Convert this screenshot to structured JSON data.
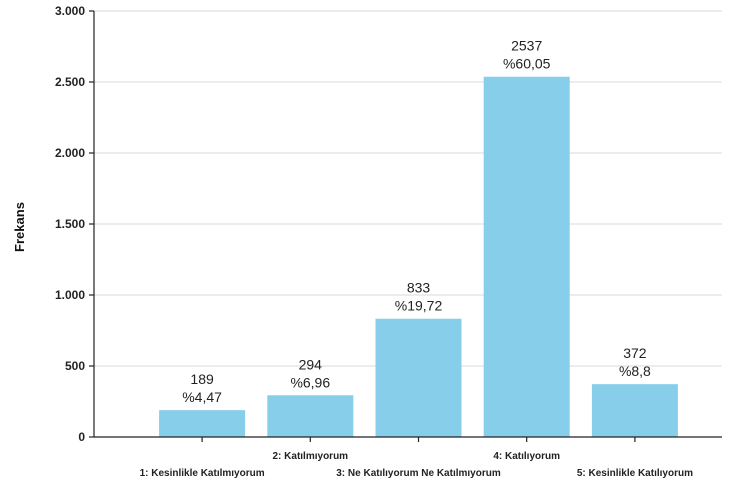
{
  "chart_data": {
    "type": "bar",
    "categories": [
      "1: Kesinlikle Katılmıyorum",
      "2: Katılmıyorum",
      "3: Ne Katılıyorum Ne Katılmıyorum",
      "4: Katılıyorum",
      "5: Kesinlikle Katılıyorum"
    ],
    "values": [
      189,
      294,
      833,
      2537,
      372
    ],
    "percent_labels": [
      "%4,47",
      "%6,96",
      "%19,72",
      "%60,05",
      "%8,8"
    ],
    "value_labels": [
      "189",
      "294",
      "833",
      "2537",
      "372"
    ],
    "xlabel": "",
    "ylabel": "Frekans",
    "ylim": [
      0,
      3000
    ],
    "yticks": [
      0,
      500,
      1000,
      1500,
      2000,
      2500,
      3000
    ],
    "ytick_labels": [
      "0",
      "500",
      "1.000",
      "1.500",
      "2.000",
      "2.500",
      "3.000"
    ],
    "grid": true,
    "bar_color": "#87ceeb",
    "category_label_rows": [
      "bottom",
      "top",
      "bottom",
      "top",
      "bottom"
    ]
  }
}
